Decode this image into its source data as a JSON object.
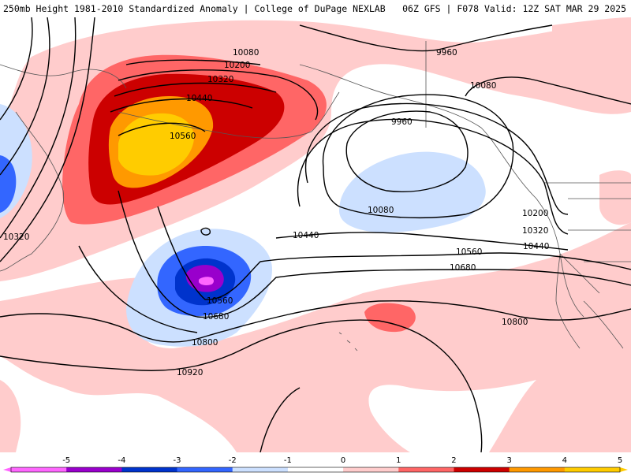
{
  "header": {
    "title": "250mb Height 1981-2010 Standardized Anomaly | College of DuPage NEXLAB",
    "run_info": "06Z GFS | F078 Valid: 12Z SAT MAR 29 2025"
  },
  "colors": {
    "neg5": "#ff66ff",
    "neg4": "#9900cc",
    "neg3": "#0033cc",
    "neg2": "#3366ff",
    "neg1": "#cce0ff",
    "zero": "#ffffff",
    "pos1": "#ffcccc",
    "pos2": "#ff6666",
    "pos3": "#cc0000",
    "pos4": "#ff9900",
    "pos5": "#ffcc00",
    "contour": "#000000",
    "coast": "#555555"
  },
  "contours": [
    {
      "id": "c9960a",
      "label": "9960"
    },
    {
      "id": "c9960b",
      "label": "9960"
    },
    {
      "id": "c10080a",
      "label": "10080"
    },
    {
      "id": "c10080b",
      "label": "10080"
    },
    {
      "id": "c10080c",
      "label": "10080"
    },
    {
      "id": "c10200a",
      "label": "10200"
    },
    {
      "id": "c10200b",
      "label": "10200"
    },
    {
      "id": "c10320a",
      "label": "10320"
    },
    {
      "id": "c10320b",
      "label": "10320"
    },
    {
      "id": "c10320c",
      "label": "10320"
    },
    {
      "id": "c10440a",
      "label": "10440"
    },
    {
      "id": "c10440b",
      "label": "10440"
    },
    {
      "id": "c10440c",
      "label": "10440"
    },
    {
      "id": "c10560a",
      "label": "10560"
    },
    {
      "id": "c10560b",
      "label": "10560"
    },
    {
      "id": "c10560c",
      "label": "10560"
    },
    {
      "id": "c10680a",
      "label": "10680"
    },
    {
      "id": "c10680b",
      "label": "10680"
    },
    {
      "id": "c10800a",
      "label": "10800"
    },
    {
      "id": "c10800b",
      "label": "10800"
    },
    {
      "id": "c10920a",
      "label": "10920"
    }
  ],
  "colorbar": {
    "ticks": [
      "-5",
      "-4",
      "-3",
      "-2",
      "-1",
      "0",
      "1",
      "2",
      "3",
      "4",
      "5"
    ],
    "segments": [
      "neg5",
      "neg4",
      "neg3",
      "neg2",
      "neg1",
      "zero",
      "pos1",
      "pos2",
      "pos3",
      "pos4",
      "pos5"
    ]
  }
}
